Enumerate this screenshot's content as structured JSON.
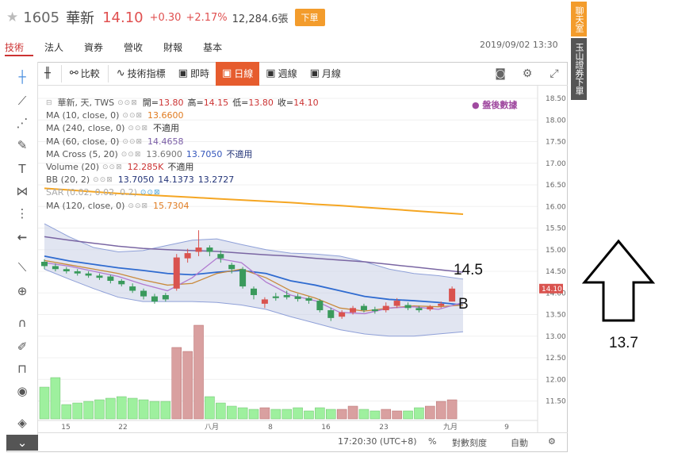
{
  "header": {
    "star": "★",
    "code": "1605",
    "name": "華新",
    "price": "14.10",
    "change": "+0.30",
    "change_pct": "+2.17%",
    "volume": "12,284.6張",
    "sell_label": "下單"
  },
  "tabs": [
    "技術",
    "法人",
    "資券",
    "營收",
    "財報",
    "基本"
  ],
  "datetime": "2019/09/02 13:30",
  "side_buttons": {
    "chat": "聊天室",
    "broker": "玉山證券下單"
  },
  "toolbar": {
    "compare": "比較",
    "indicators": "技術指標",
    "intraday": "即時",
    "daily": "日線",
    "weekly": "週線",
    "monthly": "月線"
  },
  "legend": {
    "title": "華新, 天, TWS",
    "open_label": "開=",
    "open": "13.80",
    "high_label": "高=",
    "high": "14.15",
    "low_label": "低=",
    "low": "13.80",
    "close_label": "收=",
    "close": "14.10",
    "ma10_label": "MA (10, close, 0)",
    "ma10": "13.6600",
    "ma240_label": "MA (240, close, 0)",
    "ma240": "不適用",
    "ma60_label": "MA (60, close, 0)",
    "ma60": "14.4658",
    "macross_label": "MA Cross (5, 20)",
    "macross_a": "13.6900",
    "macross_b": "13.7050",
    "macross_c": "不適用",
    "volume_label": "Volume (20)",
    "volume_a": "12.285K",
    "volume_b": "不適用",
    "bb_label": "BB (20, 2)",
    "bb_a": "13.7050",
    "bb_b": "14.1373",
    "bb_c": "13.2727",
    "sar_label": "SAR (0.02, 0.02, 0.2)",
    "ma120_label": "MA (120, close, 0)",
    "ma120": "15.7304"
  },
  "after_hours": "● 盤後數據",
  "y_axis": [
    "18.50",
    "18.00",
    "17.50",
    "17.00",
    "16.50",
    "16.00",
    "15.50",
    "15.00",
    "14.50",
    "14.00",
    "13.50",
    "13.00",
    "12.50",
    "12.00",
    "11.50"
  ],
  "x_axis": [
    "15",
    "22",
    "八月",
    "8",
    "16",
    "23",
    "九月",
    "9"
  ],
  "current_price_tag": "14.10",
  "bottom_bar": {
    "time": "17:20:30 (UTC+8)",
    "percent": "%",
    "log": "對數刻度",
    "auto": "自動"
  },
  "annotations": {
    "price_label": "14.5",
    "b_label": "B",
    "target": "13.7"
  },
  "colors": {
    "up": "#d9534f",
    "down": "#3a9a5c",
    "accent": "#e65c2e",
    "bb_fill": "#c9cfe6",
    "ma120": "#f5a623",
    "ma60": "#7a66a3",
    "ma10": "#2f6bd0"
  }
}
